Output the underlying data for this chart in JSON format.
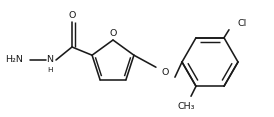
{
  "bg_color": "#ffffff",
  "line_color": "#1a1a1a",
  "line_width": 1.15,
  "font_size": 6.8,
  "figsize": [
    2.74,
    1.17
  ],
  "dpi": 100,
  "xlim": [
    0,
    274
  ],
  "ylim": [
    0,
    117
  ]
}
